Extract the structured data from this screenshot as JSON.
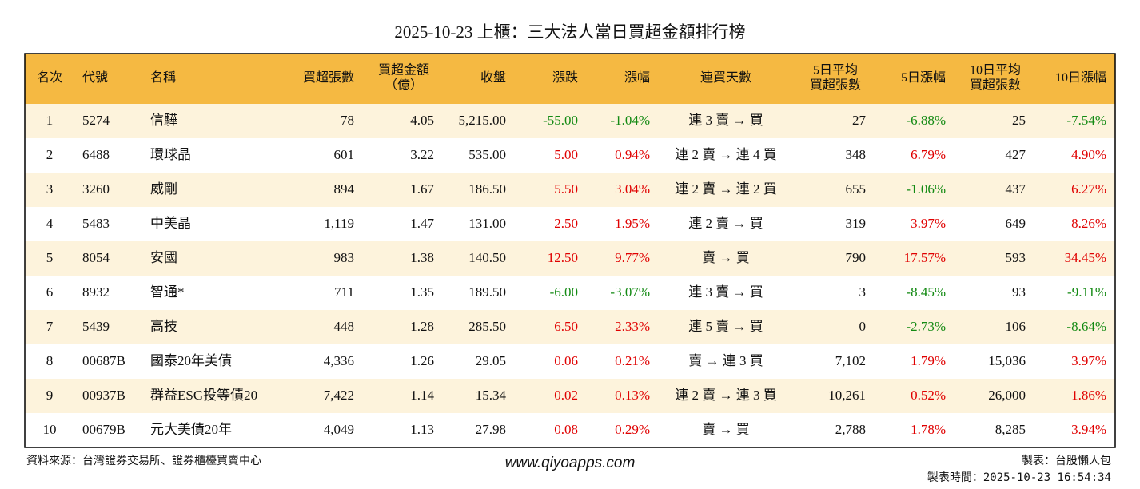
{
  "title": "2025-10-23 上櫃：三大法人當日買超金額排行榜",
  "table": {
    "header": [
      [
        "名次"
      ],
      [
        "代號"
      ],
      [
        "名稱"
      ],
      [
        "買超張數"
      ],
      [
        "買超金額",
        "（億）"
      ],
      [
        "收盤"
      ],
      [
        "漲跌"
      ],
      [
        "漲幅"
      ],
      [
        "連買天數"
      ],
      [
        "5日平均",
        "買超張數"
      ],
      [
        "5日漲幅"
      ],
      [
        "10日平均",
        "買超張數"
      ],
      [
        "10日漲幅"
      ]
    ],
    "rows": [
      [
        "1",
        "5274",
        "信驊",
        "78",
        "4.05",
        "5,215.00",
        "-55.00",
        "-1.04%",
        "連 3 賣 → 買",
        "27",
        "-6.88%",
        "25",
        "-7.54%"
      ],
      [
        "2",
        "6488",
        "環球晶",
        "601",
        "3.22",
        "535.00",
        "5.00",
        "0.94%",
        "連 2 賣 → 連 4 買",
        "348",
        "6.79%",
        "427",
        "4.90%"
      ],
      [
        "3",
        "3260",
        "威剛",
        "894",
        "1.67",
        "186.50",
        "5.50",
        "3.04%",
        "連 2 賣 → 連 2 買",
        "655",
        "-1.06%",
        "437",
        "6.27%"
      ],
      [
        "4",
        "5483",
        "中美晶",
        "1,119",
        "1.47",
        "131.00",
        "2.50",
        "1.95%",
        "連 2 賣 → 買",
        "319",
        "3.97%",
        "649",
        "8.26%"
      ],
      [
        "5",
        "8054",
        "安國",
        "983",
        "1.38",
        "140.50",
        "12.50",
        "9.77%",
        "賣 → 買",
        "790",
        "17.57%",
        "593",
        "34.45%"
      ],
      [
        "6",
        "8932",
        "智通*",
        "711",
        "1.35",
        "189.50",
        "-6.00",
        "-3.07%",
        "連 3 賣 → 買",
        "3",
        "-8.45%",
        "93",
        "-9.11%"
      ],
      [
        "7",
        "5439",
        "高技",
        "448",
        "1.28",
        "285.50",
        "6.50",
        "2.33%",
        "連 5 賣 → 買",
        "0",
        "-2.73%",
        "106",
        "-8.64%"
      ],
      [
        "8",
        "00687B",
        "國泰20年美債",
        "4,336",
        "1.26",
        "29.05",
        "0.06",
        "0.21%",
        "賣 → 連 3 買",
        "7,102",
        "1.79%",
        "15,036",
        "3.97%"
      ],
      [
        "9",
        "00937B",
        "群益ESG投等債20",
        "7,422",
        "1.14",
        "15.34",
        "0.02",
        "0.13%",
        "連 2 賣 → 連 3 買",
        "10,261",
        "0.52%",
        "26,000",
        "1.86%"
      ],
      [
        "10",
        "00679B",
        "元大美債20年",
        "4,049",
        "1.13",
        "27.98",
        "0.08",
        "0.29%",
        "賣 → 買",
        "2,788",
        "1.78%",
        "8,285",
        "3.94%"
      ]
    ]
  },
  "footer": {
    "source": "資料來源：台灣證券交易所、證券櫃檯買賣中心",
    "website": "www.qiyoapps.com",
    "maker": "製表：台股懶人包",
    "time": "製表時間：2025-10-23 16:54:34"
  }
}
